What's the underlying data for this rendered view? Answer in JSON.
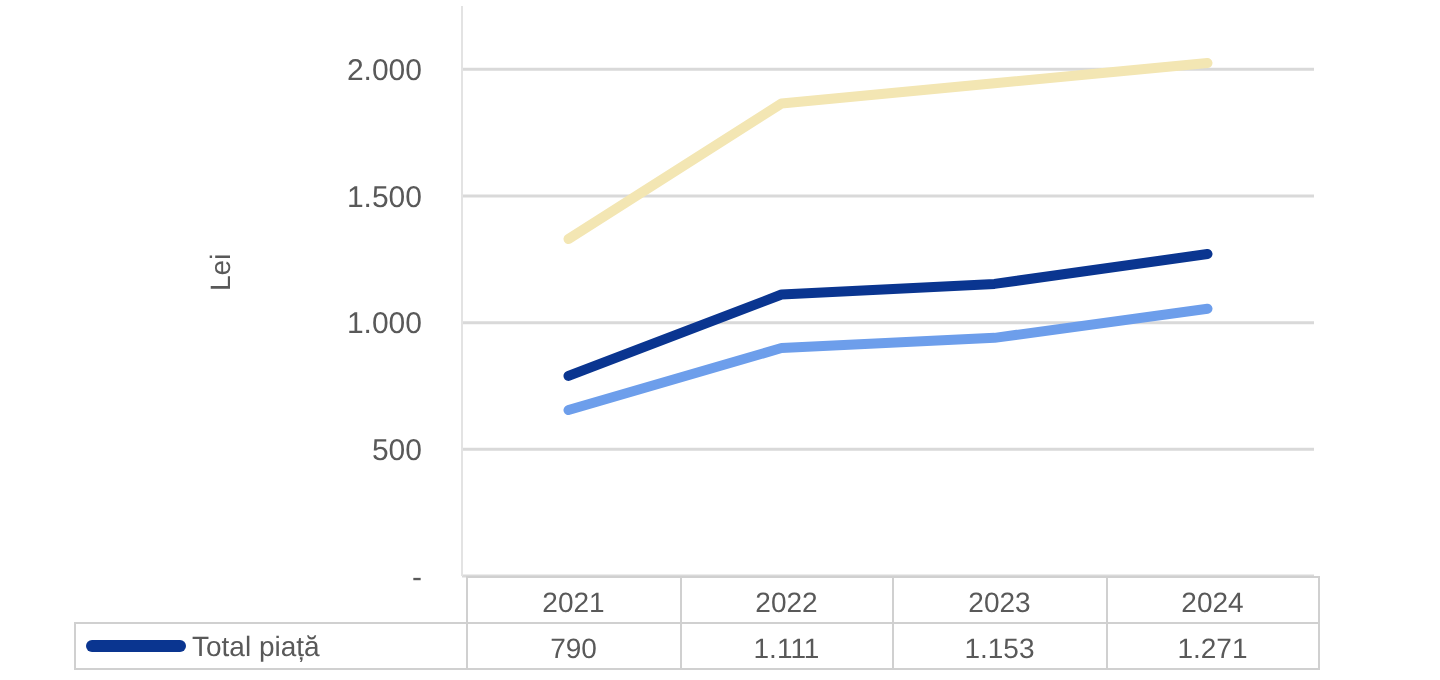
{
  "chart_data": {
    "type": "line",
    "ylabel": "Lei",
    "categories": [
      "2021",
      "2022",
      "2023",
      "2024"
    ],
    "series": [
      {
        "name": "Total piață",
        "color": "#0a3590",
        "values": [
          790,
          1111,
          1153,
          1271
        ],
        "value_labels": [
          "790",
          "1.111",
          "1.153",
          "1.271"
        ]
      },
      {
        "color": "#6d9eeb",
        "values": [
          655,
          900,
          940,
          1055
        ]
      },
      {
        "color": "#f3e6b3",
        "values": [
          1330,
          1865,
          1945,
          2025
        ]
      }
    ],
    "ylim": [
      0,
      2250
    ],
    "yticks": [
      {
        "value": 0,
        "label": "-"
      },
      500,
      {
        "value": 1000,
        "label": "1.000"
      },
      {
        "value": 1500,
        "label": "1.500"
      },
      {
        "value": 2000,
        "label": "2.000"
      }
    ],
    "grid": "y",
    "legend": "bottom",
    "marker": "none",
    "line_style": "solid"
  }
}
